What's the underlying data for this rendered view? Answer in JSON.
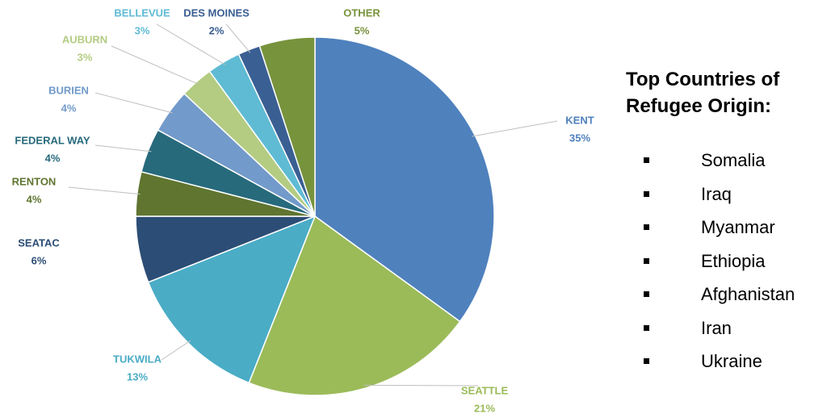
{
  "chart_data": {
    "type": "pie",
    "categories": [
      "KENT",
      "SEATTLE",
      "TUKWILA",
      "SEATAC",
      "RENTON",
      "FEDERAL WAY",
      "BURIEN",
      "AUBURN",
      "BELLEVUE",
      "DES MOINES",
      "OTHER"
    ],
    "values": [
      35,
      21,
      13,
      6,
      4,
      4,
      4,
      3,
      3,
      2,
      5
    ],
    "value_labels": [
      "35%",
      "21%",
      "13%",
      "6%",
      "4%",
      "4%",
      "4%",
      "3%",
      "3%",
      "2%",
      "5%"
    ],
    "colors": [
      "#4f81bd",
      "#9bbb59",
      "#4bacc6",
      "#2c4d75",
      "#5f7530",
      "#276a7c",
      "#729aca",
      "#b3cc82",
      "#5fbbd4",
      "#3a5f93",
      "#77933c"
    ]
  },
  "panel": {
    "title": "Top Countries of Refugee Origin:",
    "items": [
      "Somalia",
      "Iraq",
      "Myanmar",
      "Ethiopia",
      "Afghanistan",
      "Iran",
      "Ukraine"
    ]
  }
}
